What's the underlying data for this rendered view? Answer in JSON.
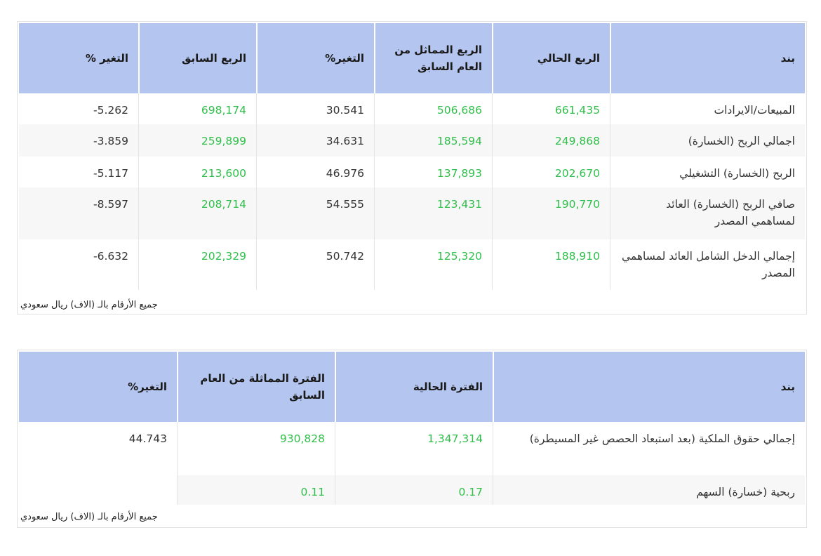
{
  "table1": {
    "headers": {
      "item": "بند",
      "current_quarter": "الربع الحالي",
      "same_quarter_last_year": "الربع المماثل من العام السابق",
      "change_yoy": "التغير%",
      "previous_quarter": "الربع السابق",
      "change_qoq": "التغير %"
    },
    "rows": [
      {
        "item": "المبيعات/الايرادات",
        "current": "661,435",
        "same_last_year": "506,686",
        "change_yoy": "30.541",
        "previous": "698,174",
        "change_qoq": "5.262-"
      },
      {
        "item": "اجمالي الربح (الخسارة)",
        "current": "249,868",
        "same_last_year": "185,594",
        "change_yoy": "34.631",
        "previous": "259,899",
        "change_qoq": "3.859-"
      },
      {
        "item": "الربح (الخسارة) التشغيلي",
        "current": "202,670",
        "same_last_year": "137,893",
        "change_yoy": "46.976",
        "previous": "213,600",
        "change_qoq": "5.117-"
      },
      {
        "item": "صافي الربح (الخسارة) العائد لمساهمي المصدر",
        "current": "190,770",
        "same_last_year": "123,431",
        "change_yoy": "54.555",
        "previous": "208,714",
        "change_qoq": "8.597-"
      },
      {
        "item": "إجمالي الدخل الشامل العائد لمساهمي المصدر",
        "current": "188,910",
        "same_last_year": "125,320",
        "change_yoy": "50.742",
        "previous": "202,329",
        "change_qoq": "6.632-"
      }
    ],
    "note": "جميع الأرقام بالـ (الاف) ريال سعودي"
  },
  "table2": {
    "headers": {
      "item": "بند",
      "current_period": "الفترة الحالية",
      "same_period_last_year": "الفترة المماثلة من العام السابق",
      "change": "التغير%"
    },
    "rows": [
      {
        "item": "إجمالي حقوق الملكية (بعد استبعاد الحصص غير المسيطرة)",
        "current": "1,347,314",
        "same_last_year": "930,828",
        "change": "44.743"
      },
      {
        "item": "ربحية (خسارة) السهم",
        "current": "0.17",
        "same_last_year": "0.11",
        "change": ""
      }
    ],
    "note": "جميع الأرقام بالـ (الاف) ريال سعودي"
  },
  "colors": {
    "header_bg": "#b4c6ef",
    "value_green": "#2fbf4a",
    "row_alt": "#f7f7f7"
  }
}
